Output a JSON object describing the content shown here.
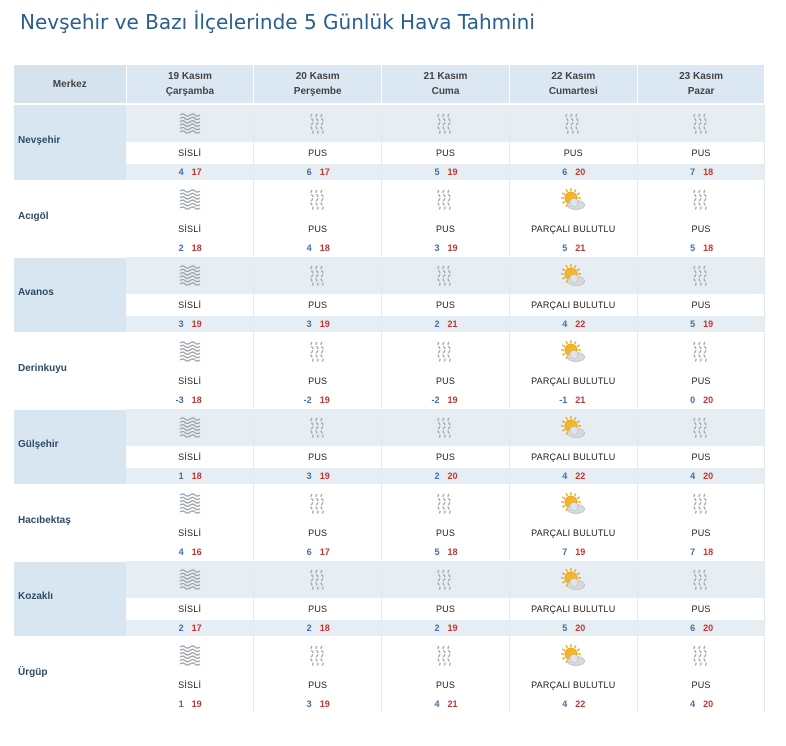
{
  "page": {
    "title": "Nevşehir ve Bazı İlçelerinde 5 Günlük Hava Tahmini"
  },
  "table": {
    "city_header": "Merkez",
    "days": [
      {
        "date": "19 Kasım",
        "weekday": "Çarşamba"
      },
      {
        "date": "20 Kasım",
        "weekday": "Perşembe"
      },
      {
        "date": "21 Kasım",
        "weekday": "Cuma"
      },
      {
        "date": "22 Kasım",
        "weekday": "Cumartesi"
      },
      {
        "date": "23 Kasım",
        "weekday": "Pazar"
      }
    ],
    "rows": [
      {
        "city": "Nevşehir",
        "forecasts": [
          {
            "icon": "fog-icon",
            "desc": "SİSLİ",
            "min": "4",
            "max": "17"
          },
          {
            "icon": "haze-icon",
            "desc": "PUS",
            "min": "6",
            "max": "17"
          },
          {
            "icon": "haze-icon",
            "desc": "PUS",
            "min": "5",
            "max": "19"
          },
          {
            "icon": "haze-icon",
            "desc": "PUS",
            "min": "6",
            "max": "20"
          },
          {
            "icon": "haze-icon",
            "desc": "PUS",
            "min": "7",
            "max": "18"
          }
        ]
      },
      {
        "city": "Acıgöl",
        "forecasts": [
          {
            "icon": "fog-icon",
            "desc": "SİSLİ",
            "min": "2",
            "max": "18"
          },
          {
            "icon": "haze-icon",
            "desc": "PUS",
            "min": "4",
            "max": "18"
          },
          {
            "icon": "haze-icon",
            "desc": "PUS",
            "min": "3",
            "max": "19"
          },
          {
            "icon": "partly-cloudy-icon",
            "desc": "PARÇALI BULUTLU",
            "min": "5",
            "max": "21"
          },
          {
            "icon": "haze-icon",
            "desc": "PUS",
            "min": "5",
            "max": "18"
          }
        ]
      },
      {
        "city": "Avanos",
        "forecasts": [
          {
            "icon": "fog-icon",
            "desc": "SİSLİ",
            "min": "3",
            "max": "19"
          },
          {
            "icon": "haze-icon",
            "desc": "PUS",
            "min": "3",
            "max": "19"
          },
          {
            "icon": "haze-icon",
            "desc": "PUS",
            "min": "2",
            "max": "21"
          },
          {
            "icon": "partly-cloudy-icon",
            "desc": "PARÇALI BULUTLU",
            "min": "4",
            "max": "22"
          },
          {
            "icon": "haze-icon",
            "desc": "PUS",
            "min": "5",
            "max": "19"
          }
        ]
      },
      {
        "city": "Derinkuyu",
        "forecasts": [
          {
            "icon": "fog-icon",
            "desc": "SİSLİ",
            "min": "-3",
            "max": "18"
          },
          {
            "icon": "haze-icon",
            "desc": "PUS",
            "min": "-2",
            "max": "19"
          },
          {
            "icon": "haze-icon",
            "desc": "PUS",
            "min": "-2",
            "max": "19"
          },
          {
            "icon": "partly-cloudy-icon",
            "desc": "PARÇALI BULUTLU",
            "min": "-1",
            "max": "21"
          },
          {
            "icon": "haze-icon",
            "desc": "PUS",
            "min": "0",
            "max": "20"
          }
        ]
      },
      {
        "city": "Gülşehir",
        "forecasts": [
          {
            "icon": "fog-icon",
            "desc": "SİSLİ",
            "min": "1",
            "max": "18"
          },
          {
            "icon": "haze-icon",
            "desc": "PUS",
            "min": "3",
            "max": "19"
          },
          {
            "icon": "haze-icon",
            "desc": "PUS",
            "min": "2",
            "max": "20"
          },
          {
            "icon": "partly-cloudy-icon",
            "desc": "PARÇALI BULUTLU",
            "min": "4",
            "max": "22"
          },
          {
            "icon": "haze-icon",
            "desc": "PUS",
            "min": "4",
            "max": "20"
          }
        ]
      },
      {
        "city": "Hacıbektaş",
        "forecasts": [
          {
            "icon": "fog-icon",
            "desc": "SİSLİ",
            "min": "4",
            "max": "16"
          },
          {
            "icon": "haze-icon",
            "desc": "PUS",
            "min": "6",
            "max": "17"
          },
          {
            "icon": "haze-icon",
            "desc": "PUS",
            "min": "5",
            "max": "18"
          },
          {
            "icon": "partly-cloudy-icon",
            "desc": "PARÇALI BULUTLU",
            "min": "7",
            "max": "19"
          },
          {
            "icon": "haze-icon",
            "desc": "PUS",
            "min": "7",
            "max": "18"
          }
        ]
      },
      {
        "city": "Kozaklı",
        "forecasts": [
          {
            "icon": "fog-icon",
            "desc": "SİSLİ",
            "min": "2",
            "max": "17"
          },
          {
            "icon": "haze-icon",
            "desc": "PUS",
            "min": "2",
            "max": "18"
          },
          {
            "icon": "haze-icon",
            "desc": "PUS",
            "min": "2",
            "max": "19"
          },
          {
            "icon": "partly-cloudy-icon",
            "desc": "PARÇALI BULUTLU",
            "min": "5",
            "max": "20"
          },
          {
            "icon": "haze-icon",
            "desc": "PUS",
            "min": "6",
            "max": "20"
          }
        ]
      },
      {
        "city": "Ürgüp",
        "forecasts": [
          {
            "icon": "fog-icon",
            "desc": "SİSLİ",
            "min": "1",
            "max": "19"
          },
          {
            "icon": "haze-icon",
            "desc": "PUS",
            "min": "3",
            "max": "19"
          },
          {
            "icon": "haze-icon",
            "desc": "PUS",
            "min": "4",
            "max": "21"
          },
          {
            "icon": "partly-cloudy-icon",
            "desc": "PARÇALI BULUTLU",
            "min": "4",
            "max": "22"
          },
          {
            "icon": "haze-icon",
            "desc": "PUS",
            "min": "4",
            "max": "20"
          }
        ]
      }
    ]
  },
  "colors": {
    "title": "#2a5f8f",
    "header_bg": "#dbe7f2",
    "alt_row_bg": "#e6edf3",
    "min_temp": "#3f6fb0",
    "max_temp": "#c03535"
  }
}
